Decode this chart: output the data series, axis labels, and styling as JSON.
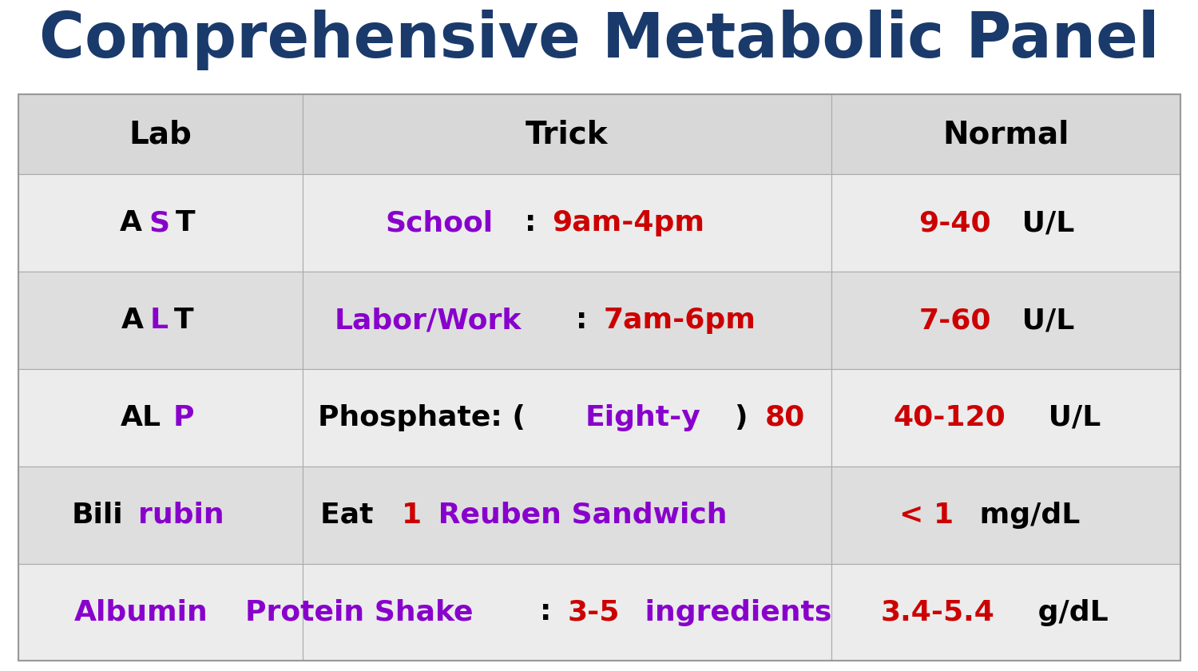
{
  "title": "Comprehensive Metabolic Panel",
  "title_color": "#1a3a6b",
  "title_fontsize": 56,
  "bg_color": "#ffffff",
  "header_bg": "#d8d8d8",
  "col_header_color": "#000000",
  "col_headers": [
    "Lab",
    "Trick",
    "Normal"
  ],
  "rows": [
    {
      "lab_parts": [
        {
          "text": "A",
          "color": "#000000"
        },
        {
          "text": "S",
          "color": "#8800cc"
        },
        {
          "text": "T",
          "color": "#000000"
        }
      ],
      "trick_parts": [
        {
          "text": "School",
          "color": "#8800cc"
        },
        {
          "text": ": ",
          "color": "#000000"
        },
        {
          "text": "9am-4pm",
          "color": "#cc0000"
        }
      ],
      "normal_parts": [
        {
          "text": "9-40",
          "color": "#cc0000"
        },
        {
          "text": " U/L",
          "color": "#000000"
        }
      ],
      "bg": "#ececec"
    },
    {
      "lab_parts": [
        {
          "text": "A",
          "color": "#000000"
        },
        {
          "text": "L",
          "color": "#8800cc"
        },
        {
          "text": "T",
          "color": "#000000"
        }
      ],
      "trick_parts": [
        {
          "text": "Labor/Work",
          "color": "#8800cc"
        },
        {
          "text": ": ",
          "color": "#000000"
        },
        {
          "text": "7am-6pm",
          "color": "#cc0000"
        }
      ],
      "normal_parts": [
        {
          "text": "7-60",
          "color": "#cc0000"
        },
        {
          "text": " U/L",
          "color": "#000000"
        }
      ],
      "bg": "#dedede"
    },
    {
      "lab_parts": [
        {
          "text": "AL",
          "color": "#000000"
        },
        {
          "text": "P",
          "color": "#8800cc"
        }
      ],
      "trick_parts": [
        {
          "text": "Phosphate: (",
          "color": "#000000"
        },
        {
          "text": "Eight-y",
          "color": "#8800cc"
        },
        {
          "text": ") ",
          "color": "#000000"
        },
        {
          "text": "80",
          "color": "#cc0000"
        }
      ],
      "normal_parts": [
        {
          "text": "40-120",
          "color": "#cc0000"
        },
        {
          "text": " U/L",
          "color": "#000000"
        }
      ],
      "bg": "#ececec"
    },
    {
      "lab_parts": [
        {
          "text": "Bili",
          "color": "#000000"
        },
        {
          "text": "rubin",
          "color": "#8800cc"
        }
      ],
      "trick_parts": [
        {
          "text": "Eat ",
          "color": "#000000"
        },
        {
          "text": "1",
          "color": "#cc0000"
        },
        {
          "text": " Reuben Sandwich",
          "color": "#8800cc"
        }
      ],
      "normal_parts": [
        {
          "text": "< 1",
          "color": "#cc0000"
        },
        {
          "text": " mg/dL",
          "color": "#000000"
        }
      ],
      "bg": "#dedede"
    },
    {
      "lab_parts": [
        {
          "text": "Albumin",
          "color": "#8800cc"
        }
      ],
      "trick_parts": [
        {
          "text": "Protein Shake",
          "color": "#8800cc"
        },
        {
          "text": ": ",
          "color": "#000000"
        },
        {
          "text": "3-5",
          "color": "#cc0000"
        },
        {
          "text": " ingredients",
          "color": "#8800cc"
        }
      ],
      "normal_parts": [
        {
          "text": "3.4-5.4",
          "color": "#cc0000"
        },
        {
          "text": " g/dL",
          "color": "#000000"
        }
      ],
      "bg": "#ececec"
    }
  ],
  "table_fontsize": 26,
  "header_fontsize": 28
}
